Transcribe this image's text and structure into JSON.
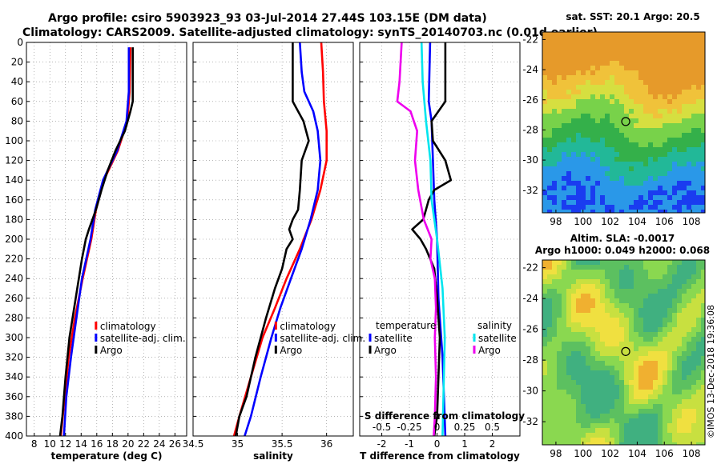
{
  "header": {
    "line1": "Argo profile: csiro 5903923_93 03-Jul-2014 27.44S 103.15E (DM data)",
    "line2": "Climatology: CARS2009. Satellite-adjusted climatology: synTS_20140703.nc (0.01d earlier)"
  },
  "watermark": "©IMOS 13-Dec-2018 19:36:08",
  "colors": {
    "climatology": "#ff0000",
    "satellite": "#0000ff",
    "argo": "#000000",
    "salinity_satellite": "#00e5ee",
    "salinity_argo": "#ee00ee"
  },
  "chart_data": [
    {
      "type": "line",
      "id": "temperature",
      "xlabel": "temperature (deg C)",
      "ylabel": "depth",
      "xlim": [
        7,
        27.5
      ],
      "ylim": [
        400,
        0
      ],
      "xticks": [
        8,
        10,
        12,
        14,
        16,
        18,
        20,
        22,
        24,
        26
      ],
      "yticks": [
        0,
        20,
        40,
        60,
        80,
        100,
        120,
        140,
        160,
        180,
        200,
        220,
        240,
        260,
        280,
        300,
        320,
        340,
        360,
        380,
        400
      ],
      "grid": true,
      "legend": {
        "position": "lower-center",
        "entries": [
          "climatology",
          "satellite-adj. clim.",
          "Argo"
        ]
      },
      "series": [
        {
          "name": "climatology",
          "color": "#ff0000",
          "depth": [
            5,
            50,
            80,
            110,
            140,
            170,
            200,
            240,
            280,
            320,
            360,
            400
          ],
          "values": [
            20.3,
            20.2,
            19.9,
            18.7,
            16.9,
            15.9,
            15.3,
            14.2,
            13.2,
            12.4,
            11.9,
            11.4
          ]
        },
        {
          "name": "satellite-adj. clim.",
          "color": "#0000ff",
          "depth": [
            5,
            50,
            80,
            110,
            140,
            170,
            200,
            240,
            280,
            320,
            360,
            400
          ],
          "values": [
            20.1,
            20.1,
            19.8,
            18.6,
            16.8,
            15.8,
            15.2,
            14.1,
            13.4,
            12.7,
            12.1,
            11.8
          ]
        },
        {
          "name": "Argo",
          "color": "#000000",
          "depth": [
            5,
            60,
            70,
            90,
            110,
            130,
            150,
            170,
            190,
            200,
            220,
            260,
            300,
            340,
            380,
            400
          ],
          "values": [
            20.6,
            20.6,
            20.3,
            19.6,
            18.4,
            17.4,
            16.6,
            15.9,
            15.0,
            14.6,
            14.1,
            13.3,
            12.5,
            12.0,
            11.6,
            11.3
          ]
        }
      ]
    },
    {
      "type": "line",
      "id": "salinity",
      "xlabel": "salinity",
      "ylabel": "depth",
      "xlim": [
        34.5,
        36.3
      ],
      "ylim": [
        400,
        0
      ],
      "xticks": [
        34.5,
        35,
        35.5,
        36
      ],
      "xtick_labels": [
        "34.5",
        "35",
        "35.5",
        "36"
      ],
      "grid": true,
      "legend": {
        "position": "lower-center",
        "entries": [
          "climatology",
          "satellite-adj. clim.",
          "Argo"
        ]
      },
      "series": [
        {
          "name": "climatology",
          "color": "#ff0000",
          "depth": [
            0,
            30,
            60,
            90,
            120,
            150,
            180,
            210,
            240,
            270,
            300,
            340,
            380,
            400
          ],
          "values": [
            35.94,
            35.96,
            35.97,
            36.0,
            36.0,
            35.93,
            35.83,
            35.7,
            35.55,
            35.42,
            35.28,
            35.15,
            35.02,
            34.96
          ]
        },
        {
          "name": "satellite-adj. clim.",
          "color": "#0000ff",
          "depth": [
            0,
            30,
            50,
            70,
            90,
            120,
            150,
            180,
            210,
            240,
            270,
            300,
            340,
            380,
            400
          ],
          "values": [
            35.7,
            35.72,
            35.75,
            35.85,
            35.9,
            35.93,
            35.9,
            35.82,
            35.72,
            35.6,
            35.48,
            35.38,
            35.26,
            35.15,
            35.08
          ]
        },
        {
          "name": "Argo",
          "color": "#000000",
          "depth": [
            0,
            40,
            60,
            70,
            80,
            100,
            120,
            150,
            170,
            180,
            190,
            200,
            210,
            230,
            250,
            280,
            320,
            360,
            380,
            400
          ],
          "values": [
            35.62,
            35.62,
            35.62,
            35.68,
            35.74,
            35.8,
            35.72,
            35.7,
            35.68,
            35.62,
            35.58,
            35.62,
            35.55,
            35.5,
            35.42,
            35.32,
            35.2,
            35.1,
            35.02,
            34.98
          ]
        }
      ]
    },
    {
      "type": "line",
      "id": "difference",
      "xlabel": "T difference from climatology",
      "x2label": "S difference from climatology",
      "ylabel": "depth",
      "xlim": [
        -2.8,
        3.0
      ],
      "ylim": [
        400,
        0
      ],
      "xticks": [
        -2,
        -1,
        0,
        1,
        2
      ],
      "x2lim": [
        -0.7,
        0.75
      ],
      "x2ticks": [
        -0.5,
        -0.25,
        0,
        0.25,
        0.5
      ],
      "x2tick_labels": [
        "-0.5",
        "-0.25",
        "0",
        "0.25",
        "0.5"
      ],
      "grid": true,
      "legend": {
        "position": "lower-center",
        "temperature_title": "temperature",
        "salinity_title": "salinity",
        "temperature_entries": [
          "satellite",
          "Argo"
        ],
        "salinity_entries": [
          "satellite",
          "Argo"
        ]
      },
      "series": [
        {
          "name": "T satellite",
          "axis": "T",
          "color": "#0000ff",
          "depth": [
            0,
            60,
            80,
            120,
            160,
            200,
            260,
            320,
            400
          ],
          "values": [
            -0.25,
            -0.3,
            -0.2,
            -0.15,
            -0.1,
            0.0,
            0.05,
            0.2,
            0.3
          ]
        },
        {
          "name": "T Argo",
          "axis": "T",
          "color": "#000000",
          "depth": [
            0,
            60,
            80,
            100,
            120,
            140,
            150,
            160,
            180,
            190,
            200,
            210,
            230,
            260,
            300,
            340,
            380,
            400
          ],
          "values": [
            0.3,
            0.3,
            -0.2,
            -0.15,
            0.3,
            0.5,
            -0.1,
            -0.3,
            -0.5,
            -0.9,
            -0.6,
            -0.4,
            -0.1,
            0.0,
            0.1,
            0.05,
            0.0,
            -0.1
          ]
        },
        {
          "name": "S satellite",
          "axis": "S",
          "color": "#00e5ee",
          "depth": [
            0,
            40,
            80,
            120,
            160,
            200,
            250,
            300,
            350,
            400
          ],
          "values": [
            -0.14,
            -0.13,
            -0.1,
            -0.06,
            -0.05,
            0.0,
            0.05,
            0.07,
            0.06,
            0.05
          ]
        },
        {
          "name": "S Argo",
          "axis": "S",
          "color": "#ee00ee",
          "depth": [
            0,
            40,
            60,
            70,
            90,
            120,
            150,
            180,
            200,
            220,
            240,
            270,
            300,
            340,
            380,
            400
          ],
          "values": [
            -0.32,
            -0.34,
            -0.36,
            -0.24,
            -0.18,
            -0.2,
            -0.17,
            -0.12,
            -0.05,
            -0.06,
            -0.02,
            -0.01,
            -0.02,
            -0.01,
            -0.02,
            -0.03
          ]
        }
      ]
    },
    {
      "type": "heatmap",
      "id": "sst_map",
      "title": "sat. SST: 20.1  Argo: 20.5",
      "xlim": [
        97,
        109
      ],
      "ylim": [
        -33.5,
        -21.5
      ],
      "xticks": [
        98,
        100,
        102,
        104,
        106,
        108
      ],
      "yticks": [
        -22,
        -24,
        -26,
        -28,
        -30,
        -32
      ],
      "marker": {
        "lon": 103.15,
        "lat": -27.44
      }
    },
    {
      "type": "heatmap",
      "id": "sla_map",
      "title": "Altim. SLA: -0.0017",
      "subtitle": "Argo h1000: 0.049 h2000: 0.068",
      "xlim": [
        97,
        109
      ],
      "ylim": [
        -33.5,
        -21.5
      ],
      "xticks": [
        98,
        100,
        102,
        104,
        106,
        108
      ],
      "yticks": [
        -22,
        -24,
        -26,
        -28,
        -30,
        -32
      ],
      "marker": {
        "lon": 103.15,
        "lat": -27.44
      }
    }
  ]
}
